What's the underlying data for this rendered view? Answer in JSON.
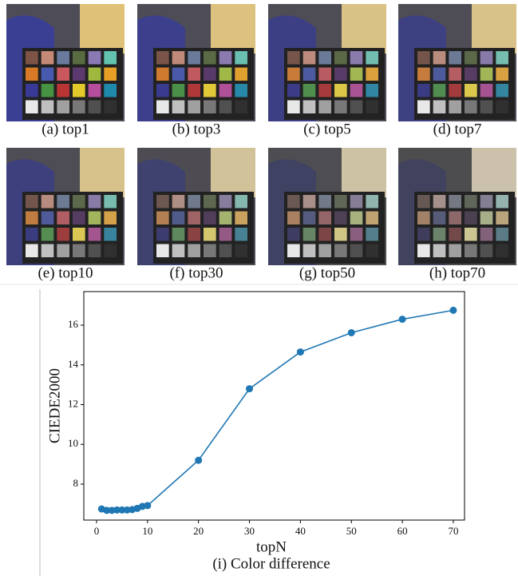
{
  "panels": [
    {
      "caption": "(a) top1"
    },
    {
      "caption": "(b) top3"
    },
    {
      "caption": "(c) top5"
    },
    {
      "caption": "(d) top7"
    },
    {
      "caption": "(e) top10"
    },
    {
      "caption": "(f) top30"
    },
    {
      "caption": "(g) top50"
    },
    {
      "caption": "(h) top70"
    }
  ],
  "chart_data": {
    "type": "line",
    "title": "(i) Color difference",
    "x_label": "topN",
    "y_label": "CIEDE2000",
    "x": [
      1,
      2,
      3,
      4,
      5,
      6,
      7,
      8,
      9,
      10,
      20,
      30,
      40,
      50,
      60,
      70
    ],
    "series": [
      {
        "color": "#1f77b4",
        "values": [
          6.75,
          6.68,
          6.68,
          6.7,
          6.7,
          6.7,
          6.72,
          6.78,
          6.88,
          6.92,
          9.2,
          12.8,
          14.65,
          15.62,
          16.3,
          16.75
        ]
      }
    ],
    "xlim": [
      -2.5,
      72.2
    ],
    "ylim": [
      6.19,
      17.69
    ],
    "xticks": [
      0,
      10,
      20,
      30,
      40,
      50,
      60,
      70
    ],
    "yticks": [
      8,
      10,
      12,
      14,
      16
    ]
  }
}
